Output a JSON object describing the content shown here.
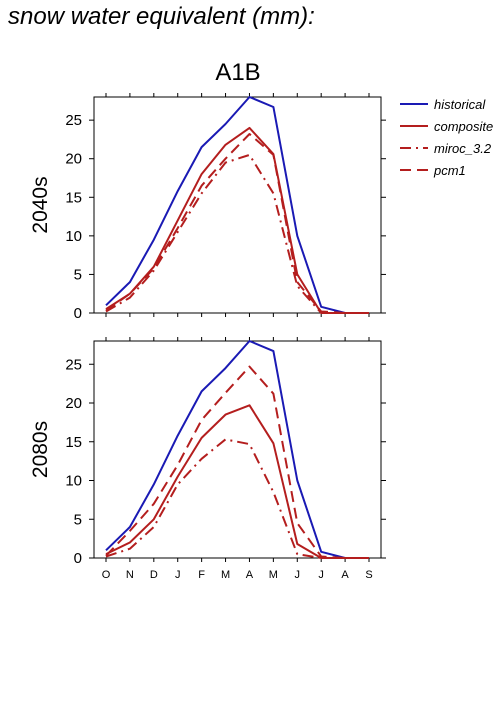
{
  "title": "snow water equivalent (mm):",
  "colors": {
    "historical": "#1a1ab4",
    "future": "#b41e1e"
  },
  "chart_data": {
    "type": "line",
    "scenario": "A1B",
    "x": [
      "O",
      "N",
      "D",
      "J",
      "F",
      "M",
      "A",
      "M",
      "J",
      "J",
      "A",
      "S"
    ],
    "ylim": [
      0,
      28
    ],
    "yticks": [
      0,
      5,
      10,
      15,
      20,
      25
    ],
    "legend": [
      {
        "name": "historical",
        "style": "solid",
        "color": "#1a1ab4"
      },
      {
        "name": "composite",
        "style": "solid",
        "color": "#b41e1e"
      },
      {
        "name": "miroc_3.2",
        "style": "dashdot",
        "color": "#b41e1e"
      },
      {
        "name": "pcm1",
        "style": "dashed",
        "color": "#b41e1e"
      }
    ],
    "panels": [
      {
        "label": "2040s",
        "series": [
          {
            "name": "historical",
            "values": [
              1.0,
              4.0,
              9.5,
              15.8,
              21.5,
              24.5,
              28.0,
              26.7,
              10.0,
              0.8,
              0.0,
              0.0
            ]
          },
          {
            "name": "composite",
            "values": [
              0.5,
              2.5,
              6.0,
              12.0,
              18.0,
              21.8,
              24.0,
              20.6,
              5.0,
              0.0,
              0.0,
              0.0
            ]
          },
          {
            "name": "miroc_3.2",
            "values": [
              0.2,
              2.0,
              5.5,
              10.5,
              15.5,
              19.5,
              20.5,
              15.5,
              3.5,
              0.0,
              0.0,
              0.0
            ]
          },
          {
            "name": "pcm1",
            "values": [
              0.3,
              2.5,
              5.8,
              11.0,
              16.5,
              20.0,
              23.2,
              20.5,
              4.0,
              0.2,
              0.0,
              0.0
            ]
          }
        ]
      },
      {
        "label": "2080s",
        "series": [
          {
            "name": "historical",
            "values": [
              1.0,
              4.0,
              9.5,
              15.8,
              21.5,
              24.5,
              28.0,
              26.7,
              10.0,
              0.8,
              0.0,
              0.0
            ]
          },
          {
            "name": "composite",
            "values": [
              0.5,
              2.0,
              5.0,
              10.5,
              15.5,
              18.5,
              19.7,
              14.8,
              1.8,
              0.0,
              0.0,
              0.0
            ]
          },
          {
            "name": "miroc_3.2",
            "values": [
              0.2,
              1.2,
              4.0,
              9.5,
              12.8,
              15.3,
              14.7,
              8.5,
              0.5,
              0.0,
              0.0,
              0.0
            ]
          },
          {
            "name": "pcm1",
            "values": [
              0.3,
              3.5,
              7.0,
              12.0,
              17.8,
              21.3,
              24.7,
              21.2,
              4.5,
              0.2,
              0.0,
              0.0
            ]
          }
        ]
      }
    ]
  }
}
